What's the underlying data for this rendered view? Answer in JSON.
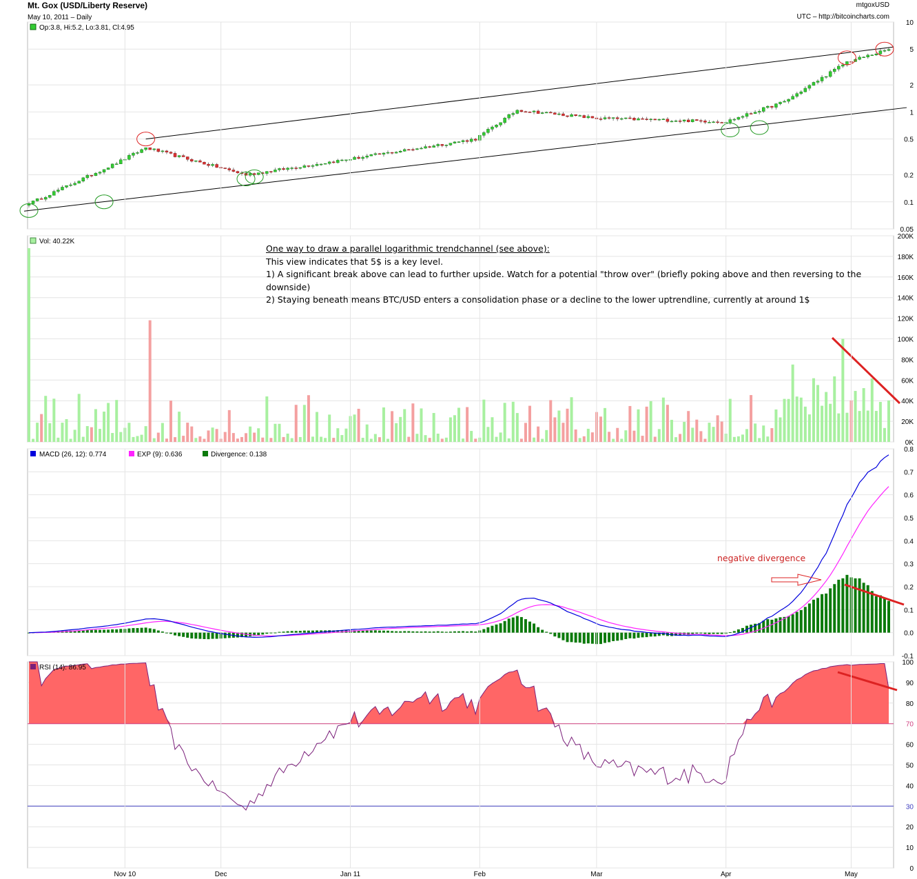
{
  "header": {
    "title": "Mt. Gox (USD/Liberty Reserve)",
    "subtitle": "May 10, 2011  –  Daily",
    "symbol": "mtgoxUSD",
    "source": "UTC – http://bitcoincharts.com"
  },
  "legends": {
    "price": "Op:3.8, Hi:5.2, Lo:3.81, Cl:4.95",
    "volume": "Vol: 40.22K",
    "macd": "MACD (26, 12): 0.774",
    "exp": "EXP (9): 0.636",
    "divergence": "Divergence: 0.138",
    "rsi": "RSI (14): 86.95"
  },
  "annotation": {
    "heading": "One way to draw a parallel logarithmic trendchannel (see above):",
    "line1": "This view indicates that 5$ is a key level.",
    "line2": "1) A significant break above can lead to further upside. Watch for a potential \"throw over\" (briefly poking above and then reversing to the downside)",
    "line3": "2) Staying beneath means BTC/USD enters a consolidation phase or a decline to the lower uptrendline, currently at around 1$",
    "macd_note": "negative divergence"
  },
  "colors": {
    "up": "#33cc33",
    "down": "#dd3333",
    "vol_up": "#a8f0a0",
    "vol_down": "#f4a0a0",
    "macd": "#0000dd",
    "exp": "#ff22ff",
    "divergence": "#0c7a0c",
    "rsi_line": "#7a1f7a",
    "rsi_fill": "#ff6666",
    "rsi_70": "#d04080",
    "rsi_30": "#4040c0",
    "annotation_red": "#dd2222",
    "trend_ring_green": "#229922"
  },
  "chart_data": [
    {
      "type": "candlestick",
      "title": "Mt. Gox (USD/Liberty Reserve)",
      "scale": "log",
      "ylim": [
        0.05,
        10
      ],
      "y_ticks": [
        "10",
        "5",
        "2",
        "1",
        "0.5",
        "0.2",
        "0.1",
        "0.05"
      ],
      "x_ticks": [
        "Nov 10",
        "Dec",
        "Jan 11",
        "Feb",
        "Mar",
        "Apr",
        "May"
      ],
      "grid": true,
      "trendlines": [
        {
          "from_date": "2010-11-13",
          "from_value": 0.5,
          "to_date": "2011-05-10",
          "to_value": 5.2
        },
        {
          "from_date": "2010-10-16",
          "from_value": 0.08,
          "to_date": "2011-05-13",
          "to_value": 1.1
        }
      ],
      "key_points": [
        {
          "date": "2010-10-17",
          "close": 0.1
        },
        {
          "date": "2010-11-06",
          "close": 0.27
        },
        {
          "date": "2010-11-13",
          "close": 0.4
        },
        {
          "date": "2010-12-07",
          "close": 0.2
        },
        {
          "date": "2011-01-01",
          "close": 0.3
        },
        {
          "date": "2011-01-31",
          "close": 0.5
        },
        {
          "date": "2011-02-10",
          "close": 1.05
        },
        {
          "date": "2011-03-01",
          "close": 0.85
        },
        {
          "date": "2011-04-01",
          "close": 0.78
        },
        {
          "date": "2011-04-15",
          "close": 1.3
        },
        {
          "date": "2011-04-30",
          "close": 3.6
        },
        {
          "date": "2011-05-10",
          "close": 4.95
        }
      ]
    },
    {
      "type": "bar",
      "title": "Volume",
      "ylim": [
        0,
        200000
      ],
      "y_ticks": [
        "0K",
        "20K",
        "40K",
        "60K",
        "80K",
        "100K",
        "120K",
        "140K",
        "160K",
        "180K",
        "200K"
      ],
      "notable_values": [
        {
          "date": "2010-10-16",
          "value": 188000
        },
        {
          "date": "2010-11-14",
          "value": 118000
        },
        {
          "date": "2011-04-29",
          "value": 100000
        },
        {
          "date": "2011-05-10",
          "value": 40220
        }
      ]
    },
    {
      "type": "line",
      "title": "MACD",
      "ylim": [
        -0.1,
        0.8
      ],
      "y_ticks": [
        "0.8",
        "0.7",
        "0.6",
        "0.5",
        "0.4",
        "0.3",
        "0.2",
        "0.1",
        "0.0",
        "-0.1"
      ],
      "series": [
        {
          "name": "MACD (26, 12)",
          "last": 0.774
        },
        {
          "name": "EXP (9)",
          "last": 0.636
        },
        {
          "name": "Divergence",
          "last": 0.138
        }
      ]
    },
    {
      "type": "area",
      "title": "RSI (14)",
      "ylim": [
        0,
        100
      ],
      "y_ticks": [
        "100",
        "90",
        "80",
        "70",
        "60",
        "50",
        "40",
        "30",
        "20",
        "10",
        "0"
      ],
      "levels": [
        70,
        30
      ],
      "last": 86.95
    }
  ]
}
